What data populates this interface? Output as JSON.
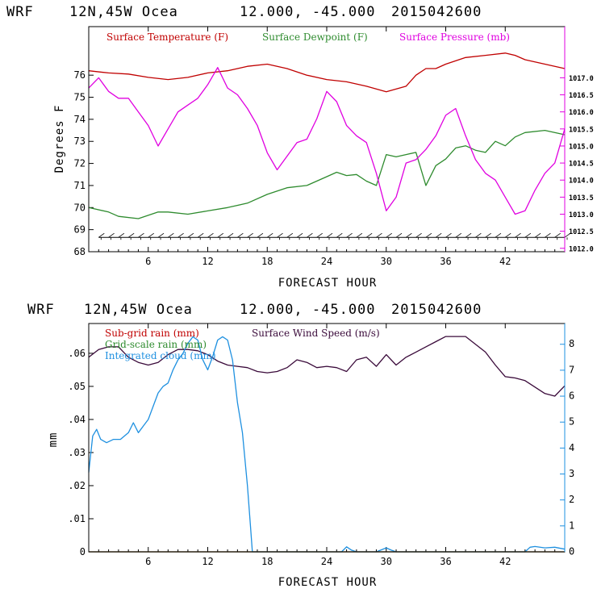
{
  "charts": [
    {
      "title": {
        "model": "WRF",
        "location": "12N,45W Ocea",
        "coords": "12.000, -45.000",
        "date": "2015042600"
      },
      "xlabel": "FORECAST HOUR",
      "ylabel": "Degrees F",
      "legend": [
        {
          "label": "Surface Temperature (F)",
          "color": "#c00000"
        },
        {
          "label": "Surface Dewpoint (F)",
          "color": "#2e8b2e"
        },
        {
          "label": "Surface Pressure (mb)",
          "color": "#e000e0"
        }
      ],
      "x_ticks": [
        "6",
        "12",
        "18",
        "24",
        "30",
        "36",
        "42"
      ],
      "left_ticks": [
        "68",
        "69",
        "70",
        "71",
        "72",
        "73",
        "74",
        "75",
        "76"
      ],
      "right_ticks": [
        "1012.0",
        "1012.5",
        "1013.0",
        "1013.5",
        "1014.0",
        "1014.5",
        "1015.0",
        "1015.5",
        "1016.0",
        "1016.5",
        "1017.0"
      ]
    },
    {
      "title": {
        "model": "WRF",
        "location": "12N,45W Ocea",
        "coords": "12.000, -45.000",
        "date": "2015042600"
      },
      "xlabel": "FORECAST HOUR",
      "ylabel": "mm",
      "legend": [
        {
          "label": "Sub-grid rain (mm)",
          "color": "#c00000"
        },
        {
          "label": "Surface Wind Speed (m/s)",
          "color": "#3a0a3a"
        },
        {
          "label": "Grid-scale rain (mm)",
          "color": "#2e8b2e"
        },
        {
          "label": "Integrated cloud (mm)",
          "color": "#1e90e0"
        }
      ],
      "x_ticks": [
        "6",
        "12",
        "18",
        "24",
        "30",
        "36",
        "42"
      ],
      "left_ticks": [
        "0",
        ".01",
        ".02",
        ".03",
        ".04",
        ".05",
        ".06"
      ],
      "right_ticks": [
        "0",
        "1",
        "2",
        "3",
        "4",
        "5",
        "6",
        "7",
        "8"
      ]
    }
  ],
  "chart_data": [
    {
      "type": "line",
      "x_range": [
        0,
        48
      ],
      "ylim_left": [
        68,
        78.2
      ],
      "ylim_right": [
        1011.9,
        1018.5
      ],
      "series": [
        {
          "name": "Surface Temperature (F)",
          "axis": "left",
          "color": "#c00000",
          "x": [
            0,
            2,
            4,
            6,
            8,
            10,
            12,
            14,
            16,
            18,
            20,
            22,
            24,
            26,
            28,
            30,
            32,
            33,
            34,
            35,
            36,
            38,
            40,
            42,
            43,
            44,
            46,
            48
          ],
          "y": [
            76.2,
            76.1,
            76.05,
            75.9,
            75.8,
            75.9,
            76.1,
            76.2,
            76.4,
            76.5,
            76.3,
            76.0,
            75.8,
            75.7,
            75.5,
            75.25,
            75.5,
            76.0,
            76.3,
            76.3,
            76.5,
            76.8,
            76.9,
            77.0,
            76.9,
            76.7,
            76.5,
            76.3
          ]
        },
        {
          "name": "Surface Dewpoint (F)",
          "axis": "left",
          "color": "#2e8b2e",
          "x": [
            0,
            2,
            3,
            5,
            7,
            8,
            10,
            12,
            14,
            16,
            18,
            20,
            22,
            24,
            25,
            26,
            27,
            28,
            29,
            30,
            31,
            32,
            33,
            34,
            35,
            36,
            37,
            38,
            39,
            40,
            41,
            42,
            43,
            44,
            46,
            48
          ],
          "y": [
            70.0,
            69.8,
            69.6,
            69.5,
            69.8,
            69.8,
            69.7,
            69.85,
            70.0,
            70.2,
            70.6,
            70.9,
            71.0,
            71.4,
            71.6,
            71.45,
            71.5,
            71.2,
            71.0,
            72.4,
            72.3,
            72.4,
            72.5,
            71.0,
            71.9,
            72.2,
            72.7,
            72.8,
            72.6,
            72.5,
            73.0,
            72.8,
            73.2,
            73.4,
            73.5,
            73.3
          ]
        },
        {
          "name": "Surface Pressure (mb)",
          "axis": "right",
          "color": "#e000e0",
          "x": [
            0,
            1,
            2,
            3,
            4,
            5,
            6,
            7,
            8,
            9,
            10,
            11,
            12,
            13,
            14,
            15,
            16,
            17,
            18,
            19,
            20,
            21,
            22,
            23,
            24,
            25,
            26,
            27,
            28,
            29,
            30,
            31,
            32,
            33,
            34,
            35,
            36,
            37,
            38,
            39,
            40,
            41,
            42,
            43,
            44,
            45,
            46,
            47,
            48
          ],
          "y": [
            1016.7,
            1017.0,
            1016.6,
            1016.4,
            1016.4,
            1016.0,
            1015.6,
            1015.0,
            1015.5,
            1016.0,
            1016.2,
            1016.4,
            1016.8,
            1017.3,
            1016.7,
            1016.5,
            1016.1,
            1015.6,
            1014.8,
            1014.3,
            1014.7,
            1015.1,
            1015.2,
            1015.8,
            1016.6,
            1016.3,
            1015.6,
            1015.3,
            1015.1,
            1014.2,
            1013.1,
            1013.5,
            1014.5,
            1014.6,
            1014.9,
            1015.3,
            1015.9,
            1016.1,
            1015.3,
            1014.6,
            1014.2,
            1014.0,
            1013.5,
            1013.0,
            1013.1,
            1013.7,
            1014.2,
            1014.5,
            1015.5
          ]
        },
        {
          "name": "Surface Wind (barbs)",
          "axis": "left",
          "color": "#000000",
          "x": [
            1,
            48
          ],
          "y": [
            68.65,
            68.65
          ]
        }
      ]
    },
    {
      "type": "line",
      "x_range": [
        0,
        48
      ],
      "ylim_left": [
        0,
        0.069
      ],
      "ylim_right": [
        0,
        8.8
      ],
      "series": [
        {
          "name": "Surface Wind Speed (m/s)",
          "axis": "right",
          "color": "#3a0a3a",
          "x": [
            0,
            1,
            2,
            3,
            4,
            5,
            6,
            7,
            8,
            9,
            10,
            11,
            12,
            13,
            14,
            15,
            16,
            17,
            18,
            19,
            20,
            21,
            22,
            23,
            24,
            25,
            26,
            27,
            28,
            29,
            30,
            31,
            32,
            33,
            34,
            35,
            36,
            37,
            38,
            39,
            40,
            41,
            42,
            43,
            44,
            45,
            46,
            47,
            48
          ],
          "y": [
            7.5,
            7.8,
            7.9,
            7.9,
            7.5,
            7.3,
            7.2,
            7.3,
            7.6,
            7.8,
            7.8,
            7.75,
            7.6,
            7.35,
            7.2,
            7.15,
            7.1,
            6.95,
            6.9,
            6.95,
            7.1,
            7.4,
            7.3,
            7.1,
            7.15,
            7.1,
            6.95,
            7.4,
            7.5,
            7.15,
            7.6,
            7.2,
            7.5,
            7.7,
            7.9,
            8.1,
            8.3,
            8.3,
            8.3,
            8.0,
            7.7,
            7.2,
            6.75,
            6.7,
            6.6,
            6.35,
            6.1,
            6.0,
            6.4
          ]
        },
        {
          "name": "Integrated cloud (mm)",
          "axis": "left",
          "color": "#1e90e0",
          "x": [
            0,
            0.4,
            0.8,
            1.2,
            1.8,
            2.5,
            3.2,
            4.0,
            4.5,
            5.0,
            5.5,
            6.0,
            6.5,
            7.0,
            7.5,
            8.0,
            8.5,
            9.0,
            9.5,
            10.0,
            10.5,
            11.0,
            11.5,
            12.0,
            12.5,
            13.0,
            13.5,
            14.0,
            14.5,
            15.0,
            15.5,
            16.0,
            16.3,
            16.5,
            17.0,
            25.5,
            26.0,
            26.5,
            27.0,
            29.0,
            30.0,
            30.5,
            31.0,
            44.0,
            44.5,
            45.0,
            46.0,
            47.0,
            48.0
          ],
          "y": [
            0.024,
            0.035,
            0.037,
            0.034,
            0.033,
            0.034,
            0.034,
            0.036,
            0.039,
            0.036,
            0.038,
            0.04,
            0.044,
            0.048,
            0.05,
            0.051,
            0.055,
            0.058,
            0.06,
            0.063,
            0.065,
            0.064,
            0.058,
            0.055,
            0.059,
            0.064,
            0.065,
            0.064,
            0.058,
            0.045,
            0.036,
            0.02,
            0.008,
            0.0,
            0.0,
            0.0,
            0.0015,
            0.0005,
            0.0,
            0.0,
            0.0012,
            0.0005,
            0.0,
            0.0,
            0.0014,
            0.0016,
            0.0012,
            0.0014,
            0.0008
          ]
        },
        {
          "name": "Sub-grid rain (mm)",
          "axis": "left",
          "color": "#c00000",
          "x": [
            0,
            48
          ],
          "y": [
            0,
            0
          ]
        },
        {
          "name": "Grid-scale rain (mm)",
          "axis": "left",
          "color": "#2e8b2e",
          "x": [
            0,
            48
          ],
          "y": [
            0,
            0
          ]
        }
      ]
    }
  ]
}
